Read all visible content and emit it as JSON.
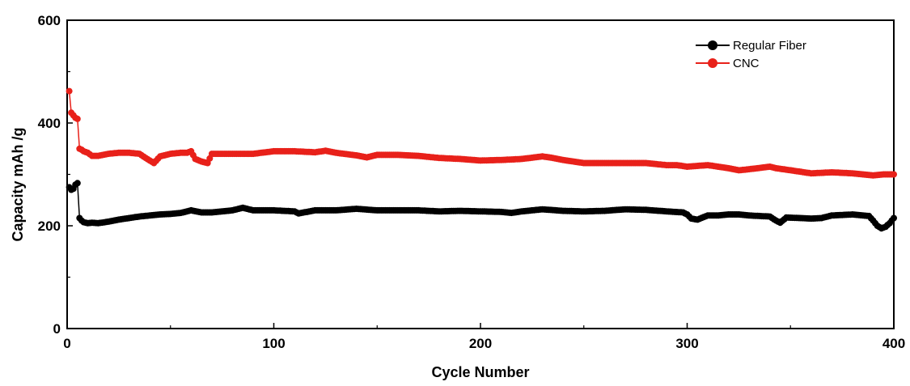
{
  "chart_data": {
    "type": "line",
    "xlabel": "Cycle Number",
    "ylabel": "Capacity mAh /g",
    "xlim": [
      0,
      400
    ],
    "ylim": [
      0,
      600
    ],
    "x_ticks": [
      "0",
      "100",
      "200",
      "300",
      "400"
    ],
    "y_ticks": [
      "0",
      "200",
      "400",
      "600"
    ],
    "grid": false,
    "legend_position": "top-right",
    "markers": "filled-circle",
    "series": [
      {
        "name": "Regular Fiber",
        "color": "#000000",
        "points": [
          [
            1,
            275
          ],
          [
            2,
            270
          ],
          [
            3,
            272
          ],
          [
            4,
            280
          ],
          [
            5,
            283
          ],
          [
            6,
            215
          ],
          [
            7,
            210
          ],
          [
            8,
            207
          ],
          [
            10,
            205
          ],
          [
            12,
            206
          ],
          [
            15,
            205
          ],
          [
            20,
            208
          ],
          [
            25,
            212
          ],
          [
            30,
            215
          ],
          [
            35,
            218
          ],
          [
            40,
            220
          ],
          [
            45,
            222
          ],
          [
            50,
            223
          ],
          [
            55,
            225
          ],
          [
            60,
            230
          ],
          [
            65,
            226
          ],
          [
            70,
            226
          ],
          [
            75,
            228
          ],
          [
            80,
            230
          ],
          [
            85,
            235
          ],
          [
            90,
            230
          ],
          [
            100,
            230
          ],
          [
            110,
            228
          ],
          [
            112,
            224
          ],
          [
            120,
            230
          ],
          [
            130,
            230
          ],
          [
            140,
            233
          ],
          [
            150,
            230
          ],
          [
            160,
            230
          ],
          [
            170,
            230
          ],
          [
            180,
            228
          ],
          [
            190,
            229
          ],
          [
            200,
            228
          ],
          [
            210,
            227
          ],
          [
            215,
            225
          ],
          [
            220,
            228
          ],
          [
            230,
            232
          ],
          [
            240,
            229
          ],
          [
            250,
            228
          ],
          [
            260,
            229
          ],
          [
            270,
            232
          ],
          [
            280,
            231
          ],
          [
            290,
            228
          ],
          [
            298,
            226
          ],
          [
            300,
            222
          ],
          [
            302,
            214
          ],
          [
            305,
            212
          ],
          [
            310,
            220
          ],
          [
            315,
            220
          ],
          [
            320,
            222
          ],
          [
            325,
            222
          ],
          [
            330,
            220
          ],
          [
            340,
            218
          ],
          [
            343,
            210
          ],
          [
            345,
            206
          ],
          [
            348,
            216
          ],
          [
            355,
            215
          ],
          [
            360,
            214
          ],
          [
            365,
            215
          ],
          [
            370,
            220
          ],
          [
            380,
            222
          ],
          [
            388,
            219
          ],
          [
            390,
            210
          ],
          [
            392,
            200
          ],
          [
            394,
            195
          ],
          [
            396,
            198
          ],
          [
            398,
            205
          ],
          [
            400,
            215
          ]
        ]
      },
      {
        "name": "CNC",
        "color": "#e8211a",
        "points": [
          [
            1,
            462
          ],
          [
            2,
            420
          ],
          [
            3,
            415
          ],
          [
            4,
            410
          ],
          [
            5,
            408
          ],
          [
            6,
            350
          ],
          [
            7,
            348
          ],
          [
            8,
            345
          ],
          [
            10,
            342
          ],
          [
            12,
            336
          ],
          [
            15,
            336
          ],
          [
            20,
            340
          ],
          [
            25,
            342
          ],
          [
            30,
            342
          ],
          [
            35,
            340
          ],
          [
            38,
            332
          ],
          [
            40,
            327
          ],
          [
            42,
            322
          ],
          [
            45,
            335
          ],
          [
            50,
            340
          ],
          [
            55,
            342
          ],
          [
            58,
            342
          ],
          [
            60,
            345
          ],
          [
            62,
            330
          ],
          [
            65,
            325
          ],
          [
            68,
            322
          ],
          [
            70,
            340
          ],
          [
            75,
            340
          ],
          [
            80,
            340
          ],
          [
            90,
            340
          ],
          [
            100,
            345
          ],
          [
            110,
            345
          ],
          [
            120,
            343
          ],
          [
            125,
            346
          ],
          [
            130,
            342
          ],
          [
            140,
            337
          ],
          [
            145,
            333
          ],
          [
            150,
            338
          ],
          [
            160,
            338
          ],
          [
            170,
            336
          ],
          [
            180,
            332
          ],
          [
            190,
            330
          ],
          [
            200,
            327
          ],
          [
            210,
            328
          ],
          [
            220,
            330
          ],
          [
            230,
            335
          ],
          [
            235,
            332
          ],
          [
            240,
            328
          ],
          [
            250,
            322
          ],
          [
            260,
            322
          ],
          [
            270,
            322
          ],
          [
            280,
            322
          ],
          [
            290,
            318
          ],
          [
            295,
            318
          ],
          [
            300,
            315
          ],
          [
            310,
            318
          ],
          [
            320,
            312
          ],
          [
            325,
            308
          ],
          [
            330,
            310
          ],
          [
            340,
            315
          ],
          [
            343,
            312
          ],
          [
            350,
            308
          ],
          [
            360,
            302
          ],
          [
            370,
            304
          ],
          [
            380,
            302
          ],
          [
            390,
            298
          ],
          [
            395,
            300
          ],
          [
            400,
            300
          ]
        ]
      }
    ]
  }
}
